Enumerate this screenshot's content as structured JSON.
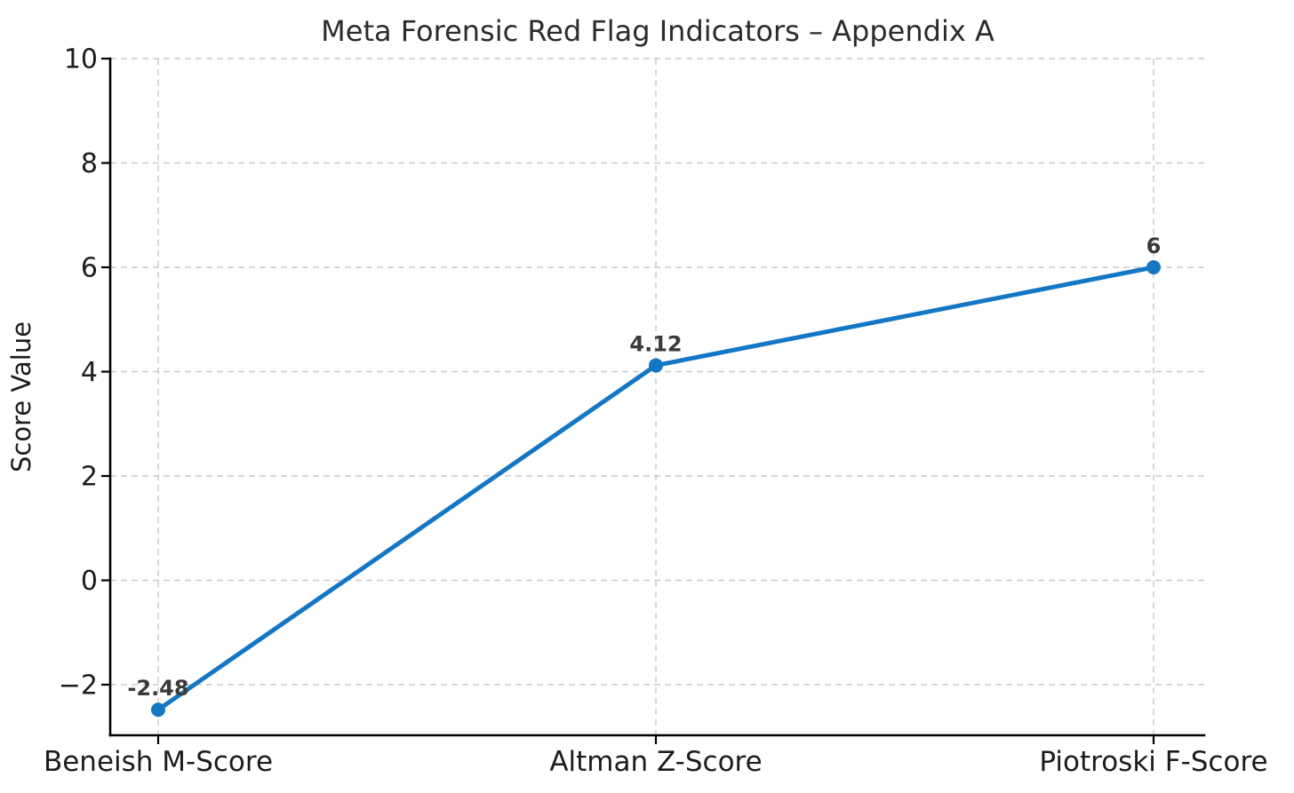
{
  "chart_data": {
    "type": "line",
    "title": "Meta Forensic Red Flag Indicators – Appendix A",
    "ylabel": "Score Value",
    "xlabel": "",
    "categories": [
      "Beneish M-Score",
      "Altman Z-Score",
      "Piotroski F-Score"
    ],
    "values": [
      -2.48,
      4.12,
      6
    ],
    "point_labels": [
      "-2.48",
      "4.12",
      "6"
    ],
    "yticks": [
      -2,
      0,
      2,
      4,
      6,
      8,
      10
    ],
    "ytick_labels": [
      "−2",
      "0",
      "2",
      "4",
      "6",
      "8",
      "10"
    ],
    "ylim": [
      -2.97,
      10
    ],
    "grid": true,
    "grid_style": "dashed",
    "legend_position": "none",
    "marker_style": "circle",
    "colors": {
      "line": "#1477c4",
      "grid": "#c9c9c9",
      "axis": "#000000",
      "tick_label": "#1c1c1c",
      "title": "#2b2b2b",
      "point_label": "#3a3a3a",
      "background": "#ffffff"
    }
  }
}
